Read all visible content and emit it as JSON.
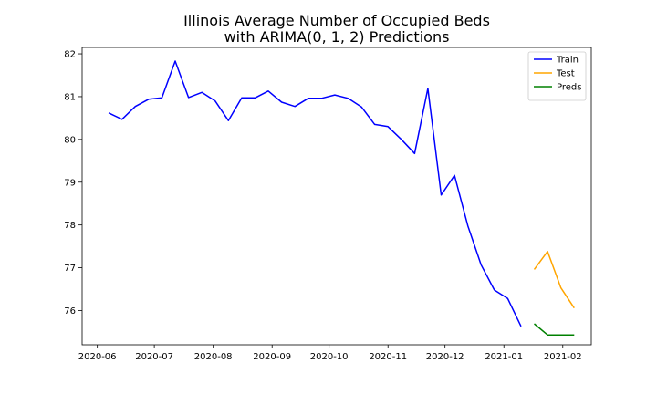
{
  "chart_data": {
    "type": "line",
    "title": [
      "Illinois Average Number of Occupied Beds",
      "with ARIMA(0, 1, 2) Predictions"
    ],
    "xlabel": "",
    "ylabel": "",
    "x_axis": {
      "kind": "date",
      "range": [
        "2020-05-24",
        "2021-02-16"
      ],
      "ticks": [
        "2020-06-01",
        "2020-07-01",
        "2020-08-01",
        "2020-09-01",
        "2020-10-01",
        "2020-11-01",
        "2020-12-01",
        "2021-01-01",
        "2021-02-01"
      ],
      "tick_labels": [
        "2020-06",
        "2020-07",
        "2020-08",
        "2020-09",
        "2020-10",
        "2020-11",
        "2020-12",
        "2021-01",
        "2021-02"
      ]
    },
    "y_axis": {
      "range": [
        75.2,
        82.15
      ],
      "ticks": [
        76,
        77,
        78,
        79,
        80,
        81,
        82
      ],
      "tick_labels": [
        "76",
        "77",
        "78",
        "79",
        "80",
        "81",
        "82"
      ]
    },
    "grid": false,
    "legend_position": "top-right",
    "series": [
      {
        "name": "Train",
        "color": "#0000ff",
        "x": [
          "2020-06-07",
          "2020-06-14",
          "2020-06-21",
          "2020-06-28",
          "2020-07-05",
          "2020-07-12",
          "2020-07-19",
          "2020-07-26",
          "2020-08-02",
          "2020-08-09",
          "2020-08-16",
          "2020-08-23",
          "2020-08-30",
          "2020-09-06",
          "2020-09-13",
          "2020-09-20",
          "2020-09-27",
          "2020-10-04",
          "2020-10-11",
          "2020-10-18",
          "2020-10-25",
          "2020-11-01",
          "2020-11-08",
          "2020-11-15",
          "2020-11-22",
          "2020-11-29",
          "2020-12-06",
          "2020-12-13",
          "2020-12-20",
          "2020-12-27",
          "2021-01-03",
          "2021-01-10"
        ],
        "values": [
          80.62,
          80.47,
          80.77,
          80.94,
          80.97,
          81.83,
          80.98,
          81.1,
          80.9,
          80.44,
          80.97,
          80.97,
          81.13,
          80.87,
          80.77,
          80.96,
          80.96,
          81.04,
          80.96,
          80.76,
          80.35,
          80.3,
          80.0,
          79.67,
          81.19,
          78.7,
          79.16,
          77.98,
          77.07,
          76.48,
          76.28,
          75.63
        ]
      },
      {
        "name": "Test",
        "color": "#ffa500",
        "x": [
          "2021-01-17",
          "2021-01-24",
          "2021-01-31",
          "2021-02-07"
        ],
        "values": [
          76.96,
          77.38,
          76.53,
          76.06
        ]
      },
      {
        "name": "Preds",
        "color": "#008000",
        "x": [
          "2021-01-17",
          "2021-01-24",
          "2021-01-31",
          "2021-02-07"
        ],
        "values": [
          75.69,
          75.43,
          75.43,
          75.43
        ]
      }
    ]
  }
}
